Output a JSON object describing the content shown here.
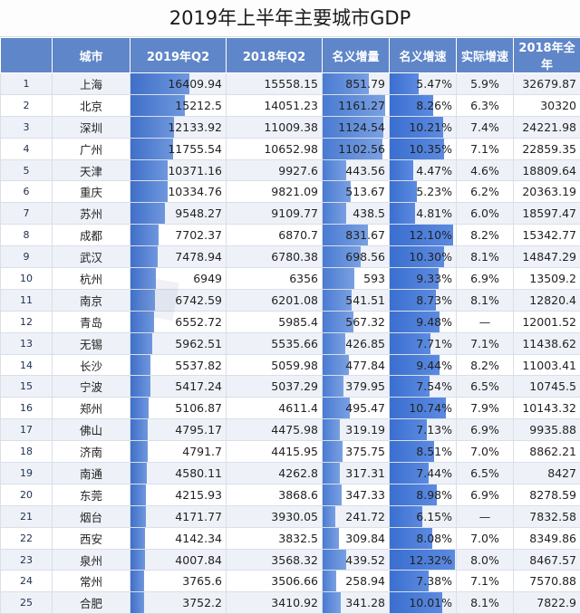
{
  "title": "2019年上半年主要城市GDP",
  "headers": [
    "城市",
    "2019年Q2",
    "2018年Q2",
    "名义增量",
    "名义增速",
    "实际增速",
    "2018年全年"
  ],
  "rows": [
    {
      "rank": "1",
      "city": "上海",
      "q2_2019": "16409.94",
      "q2_2018": "15558.15",
      "increment": "851.79",
      "nominal_rate": "5.47%",
      "real_rate": "5.9%",
      "year_2018": "32679.87"
    },
    {
      "rank": "2",
      "city": "北京",
      "q2_2019": "15212.5",
      "q2_2018": "14051.23",
      "increment": "1161.27",
      "nominal_rate": "8.26%",
      "real_rate": "6.3%",
      "year_2018": "30320"
    },
    {
      "rank": "3",
      "city": "深圳",
      "q2_2019": "12133.92",
      "q2_2018": "11009.38",
      "increment": "1124.54",
      "nominal_rate": "10.21%",
      "real_rate": "7.4%",
      "year_2018": "24221.98"
    },
    {
      "rank": "4",
      "city": "广州",
      "q2_2019": "11755.54",
      "q2_2018": "10652.98",
      "increment": "1102.56",
      "nominal_rate": "10.35%",
      "real_rate": "7.1%",
      "year_2018": "22859.35"
    },
    {
      "rank": "5",
      "city": "天津",
      "q2_2019": "10371.16",
      "q2_2018": "9927.6",
      "increment": "443.56",
      "nominal_rate": "4.47%",
      "real_rate": "4.6%",
      "year_2018": "18809.64"
    },
    {
      "rank": "6",
      "city": "重庆",
      "q2_2019": "10334.76",
      "q2_2018": "9821.09",
      "increment": "513.67",
      "nominal_rate": "5.23%",
      "real_rate": "6.2%",
      "year_2018": "20363.19"
    },
    {
      "rank": "7",
      "city": "苏州",
      "q2_2019": "9548.27",
      "q2_2018": "9109.77",
      "increment": "438.5",
      "nominal_rate": "4.81%",
      "real_rate": "6.0%",
      "year_2018": "18597.47"
    },
    {
      "rank": "8",
      "city": "成都",
      "q2_2019": "7702.37",
      "q2_2018": "6870.7",
      "increment": "831.67",
      "nominal_rate": "12.10%",
      "real_rate": "8.2%",
      "year_2018": "15342.77"
    },
    {
      "rank": "9",
      "city": "武汉",
      "q2_2019": "7478.94",
      "q2_2018": "6780.38",
      "increment": "698.56",
      "nominal_rate": "10.30%",
      "real_rate": "8.1%",
      "year_2018": "14847.29"
    },
    {
      "rank": "10",
      "city": "杭州",
      "q2_2019": "6949",
      "q2_2018": "6356",
      "increment": "593",
      "nominal_rate": "9.33%",
      "real_rate": "6.9%",
      "year_2018": "13509.2"
    },
    {
      "rank": "11",
      "city": "南京",
      "q2_2019": "6742.59",
      "q2_2018": "6201.08",
      "increment": "541.51",
      "nominal_rate": "8.73%",
      "real_rate": "8.1%",
      "year_2018": "12820.4"
    },
    {
      "rank": "12",
      "city": "青岛",
      "q2_2019": "6552.72",
      "q2_2018": "5985.4",
      "increment": "567.32",
      "nominal_rate": "9.48%",
      "real_rate": "—",
      "year_2018": "12001.52"
    },
    {
      "rank": "13",
      "city": "无锡",
      "q2_2019": "5962.51",
      "q2_2018": "5535.66",
      "increment": "426.85",
      "nominal_rate": "7.71%",
      "real_rate": "7.1%",
      "year_2018": "11438.62"
    },
    {
      "rank": "14",
      "city": "长沙",
      "q2_2019": "5537.82",
      "q2_2018": "5059.98",
      "increment": "477.84",
      "nominal_rate": "9.44%",
      "real_rate": "8.2%",
      "year_2018": "11003.41"
    },
    {
      "rank": "15",
      "city": "宁波",
      "q2_2019": "5417.24",
      "q2_2018": "5037.29",
      "increment": "379.95",
      "nominal_rate": "7.54%",
      "real_rate": "6.5%",
      "year_2018": "10745.5"
    },
    {
      "rank": "16",
      "city": "郑州",
      "q2_2019": "5106.87",
      "q2_2018": "4611.4",
      "increment": "495.47",
      "nominal_rate": "10.74%",
      "real_rate": "7.9%",
      "year_2018": "10143.32"
    },
    {
      "rank": "17",
      "city": "佛山",
      "q2_2019": "4795.17",
      "q2_2018": "4475.98",
      "increment": "319.19",
      "nominal_rate": "7.13%",
      "real_rate": "6.9%",
      "year_2018": "9935.88"
    },
    {
      "rank": "18",
      "city": "济南",
      "q2_2019": "4791.7",
      "q2_2018": "4415.95",
      "increment": "375.75",
      "nominal_rate": "8.51%",
      "real_rate": "7.0%",
      "year_2018": "8862.21"
    },
    {
      "rank": "19",
      "city": "南通",
      "q2_2019": "4580.11",
      "q2_2018": "4262.8",
      "increment": "317.31",
      "nominal_rate": "7.44%",
      "real_rate": "6.5%",
      "year_2018": "8427"
    },
    {
      "rank": "20",
      "city": "东莞",
      "q2_2019": "4215.93",
      "q2_2018": "3868.6",
      "increment": "347.33",
      "nominal_rate": "8.98%",
      "real_rate": "6.9%",
      "year_2018": "8278.59"
    },
    {
      "rank": "21",
      "city": "烟台",
      "q2_2019": "4171.77",
      "q2_2018": "3930.05",
      "increment": "241.72",
      "nominal_rate": "6.15%",
      "real_rate": "—",
      "year_2018": "7832.58"
    },
    {
      "rank": "22",
      "city": "西安",
      "q2_2019": "4142.34",
      "q2_2018": "3832.5",
      "increment": "309.84",
      "nominal_rate": "8.08%",
      "real_rate": "7.0%",
      "year_2018": "8349.86"
    },
    {
      "rank": "23",
      "city": "泉州",
      "q2_2019": "4007.84",
      "q2_2018": "3568.32",
      "increment": "439.52",
      "nominal_rate": "12.32%",
      "real_rate": "8.0%",
      "year_2018": "8467.57"
    },
    {
      "rank": "24",
      "city": "常州",
      "q2_2019": "3765.6",
      "q2_2018": "3506.66",
      "increment": "258.94",
      "nominal_rate": "7.38%",
      "real_rate": "7.1%",
      "year_2018": "7570.88"
    },
    {
      "rank": "25",
      "city": "合肥",
      "q2_2019": "3752.2",
      "q2_2018": "3410.92",
      "increment": "341.28",
      "nominal_rate": "10.01%",
      "real_rate": "8.1%",
      "year_2018": "7822.9"
    }
  ],
  "colors": {
    "header_bg": "#5f86c8",
    "bar_blue": "#4e7bd0",
    "alt_row": "#eef2f8"
  }
}
